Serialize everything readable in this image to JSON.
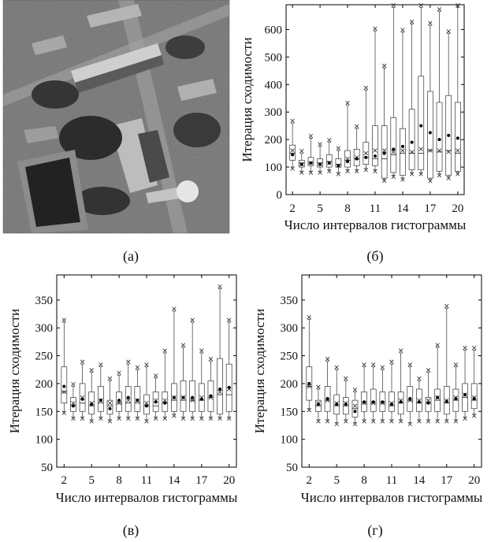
{
  "captions": [
    "(а)",
    "(б)",
    "(в)",
    "(г)"
  ],
  "chart_data": [
    {
      "type": "box",
      "panel": "б",
      "xlabel": "Число интервалов гистограммы",
      "ylabel": "Итерация сходимости",
      "ylim": [
        0,
        690
      ],
      "yticks": [
        0,
        100,
        200,
        300,
        400,
        500,
        600
      ],
      "xlim": [
        1.3,
        20.7
      ],
      "xticks": [
        2,
        5,
        8,
        11,
        14,
        17,
        20
      ],
      "categories": [
        2,
        3,
        4,
        5,
        6,
        7,
        8,
        9,
        10,
        11,
        12,
        13,
        14,
        15,
        16,
        17,
        18,
        19,
        20
      ],
      "q1": [
        125,
        100,
        105,
        100,
        100,
        100,
        100,
        105,
        110,
        105,
        60,
        80,
        70,
        90,
        90,
        60,
        85,
        70,
        85
      ],
      "median": [
        150,
        115,
        115,
        115,
        120,
        110,
        125,
        130,
        135,
        130,
        130,
        145,
        150,
        150,
        150,
        160,
        155,
        160,
        150
      ],
      "q3": [
        180,
        125,
        135,
        130,
        145,
        130,
        160,
        165,
        190,
        250,
        250,
        280,
        240,
        310,
        430,
        375,
        335,
        360,
        335
      ],
      "whisker_high": [
        260,
        150,
        205,
        175,
        190,
        160,
        325,
        240,
        380,
        595,
        460,
        680,
        590,
        620,
        680,
        615,
        665,
        585,
        680
      ],
      "whisker_low": [
        100,
        85,
        85,
        85,
        90,
        80,
        90,
        90,
        95,
        90,
        55,
        70,
        60,
        80,
        80,
        55,
        75,
        65,
        80
      ],
      "mean": [
        145,
        110,
        115,
        110,
        115,
        105,
        120,
        130,
        135,
        140,
        150,
        165,
        175,
        190,
        250,
        225,
        200,
        215,
        205
      ],
      "x_markers": [
        160,
        110,
        115,
        110,
        115,
        105,
        130,
        135,
        150,
        160,
        160,
        155,
        160,
        155,
        165,
        160,
        160,
        155,
        160
      ]
    },
    {
      "type": "box",
      "panel": "в",
      "xlabel": "Число интервалов гистограммы",
      "ylabel": "Итерация сходимости",
      "ylim": [
        50,
        395
      ],
      "yticks": [
        50,
        100,
        150,
        200,
        250,
        300,
        350
      ],
      "xlim": [
        1.2,
        20.8
      ],
      "xticks": [
        2,
        5,
        8,
        11,
        14,
        17,
        20
      ],
      "categories": [
        2,
        3,
        4,
        5,
        6,
        7,
        8,
        9,
        10,
        11,
        12,
        13,
        14,
        15,
        16,
        17,
        18,
        19,
        20
      ],
      "q1": [
        165,
        150,
        150,
        145,
        150,
        145,
        150,
        150,
        150,
        145,
        150,
        150,
        150,
        150,
        150,
        150,
        150,
        145,
        150
      ],
      "median": [
        185,
        160,
        165,
        160,
        165,
        160,
        165,
        165,
        165,
        160,
        160,
        165,
        170,
        170,
        170,
        170,
        175,
        180,
        180
      ],
      "q3": [
        230,
        175,
        200,
        185,
        195,
        170,
        185,
        195,
        195,
        180,
        185,
        185,
        200,
        205,
        205,
        200,
        205,
        245,
        235
      ],
      "whisker_high": [
        310,
        195,
        235,
        220,
        230,
        205,
        215,
        235,
        225,
        230,
        210,
        255,
        330,
        265,
        310,
        255,
        240,
        370,
        310
      ],
      "whisker_low": [
        150,
        140,
        140,
        135,
        140,
        135,
        140,
        140,
        140,
        135,
        140,
        140,
        145,
        140,
        140,
        140,
        140,
        140,
        140
      ],
      "mean": [
        195,
        160,
        172,
        163,
        170,
        155,
        170,
        175,
        170,
        160,
        167,
        165,
        175,
        175,
        175,
        172,
        178,
        190,
        193
      ],
      "x_markers": [
        185,
        165,
        175,
        165,
        170,
        165,
        165,
        170,
        170,
        165,
        170,
        170,
        175,
        175,
        170,
        175,
        175,
        185,
        190
      ]
    },
    {
      "type": "box",
      "panel": "г",
      "xlabel": "Число интервалов гистограммы",
      "ylabel": "Итерация сходимости",
      "ylim": [
        50,
        395
      ],
      "yticks": [
        50,
        100,
        150,
        200,
        250,
        300,
        350
      ],
      "xlim": [
        1.2,
        20.8
      ],
      "xticks": [
        2,
        5,
        8,
        11,
        14,
        17,
        20
      ],
      "categories": [
        2,
        3,
        4,
        5,
        6,
        7,
        8,
        9,
        10,
        11,
        12,
        13,
        14,
        15,
        16,
        17,
        18,
        19,
        20
      ],
      "q1": [
        170,
        150,
        150,
        145,
        145,
        140,
        150,
        150,
        150,
        150,
        145,
        150,
        150,
        150,
        150,
        145,
        150,
        150,
        155
      ],
      "median": [
        195,
        160,
        170,
        160,
        160,
        155,
        165,
        165,
        165,
        160,
        165,
        170,
        165,
        165,
        170,
        165,
        170,
        175,
        170
      ],
      "q3": [
        230,
        170,
        195,
        180,
        175,
        170,
        185,
        190,
        185,
        185,
        185,
        195,
        190,
        175,
        190,
        195,
        190,
        200,
        200
      ],
      "whisker_high": [
        315,
        190,
        240,
        225,
        205,
        185,
        230,
        230,
        225,
        235,
        255,
        230,
        205,
        220,
        265,
        335,
        230,
        260,
        260
      ],
      "whisker_low": [
        155,
        135,
        135,
        130,
        135,
        130,
        135,
        135,
        135,
        135,
        135,
        130,
        135,
        135,
        135,
        135,
        135,
        140,
        145
      ],
      "mean": [
        200,
        163,
        173,
        163,
        163,
        150,
        167,
        167,
        167,
        163,
        167,
        173,
        167,
        165,
        175,
        168,
        173,
        180,
        173
      ],
      "x_markers": [
        195,
        165,
        170,
        165,
        165,
        160,
        165,
        165,
        165,
        165,
        170,
        170,
        170,
        170,
        175,
        170,
        175,
        180,
        175
      ]
    }
  ]
}
